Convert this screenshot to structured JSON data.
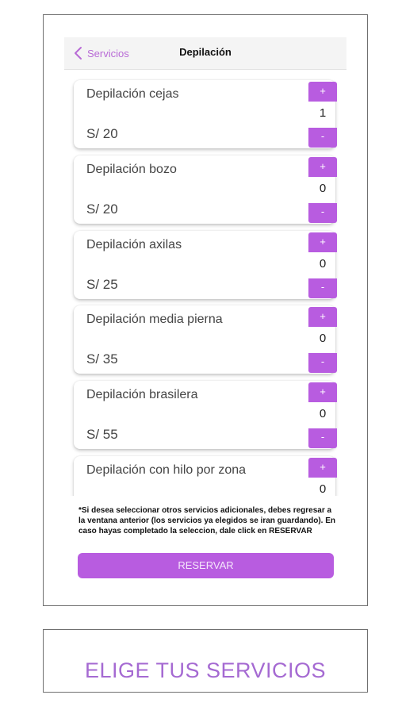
{
  "nav": {
    "back_label": "Servicios",
    "title": "Depilación"
  },
  "colors": {
    "accent": "#b85ce0",
    "back_link": "#b86ad6",
    "caption": "#a56ad2"
  },
  "services": [
    {
      "name": "Depilación cejas",
      "price": "S/ 20",
      "qty": "1",
      "plus": "+",
      "minus": "-"
    },
    {
      "name": "Depilación bozo",
      "price": "S/ 20",
      "qty": "0",
      "plus": "+",
      "minus": "-"
    },
    {
      "name": "Depilación axilas",
      "price": "S/ 25",
      "qty": "0",
      "plus": "+",
      "minus": "-"
    },
    {
      "name": "Depilación media pierna",
      "price": "S/ 35",
      "qty": "0",
      "plus": "+",
      "minus": "-"
    },
    {
      "name": "Depilación brasilera",
      "price": "S/ 55",
      "qty": "0",
      "plus": "+",
      "minus": "-"
    },
    {
      "name": "Depilación con hilo por zona",
      "price": "",
      "qty": "0",
      "plus": "+",
      "minus": "-"
    }
  ],
  "footnote": "*Si desea seleccionar otros servicios adicionales, debes regresar a la ventana anterior (los servicios ya elegidos se iran guardando). En caso hayas completado la seleccion, dale click en RESERVAR",
  "reserve_label": "RESERVAR",
  "caption": "ELIGE TUS SERVICIOS"
}
